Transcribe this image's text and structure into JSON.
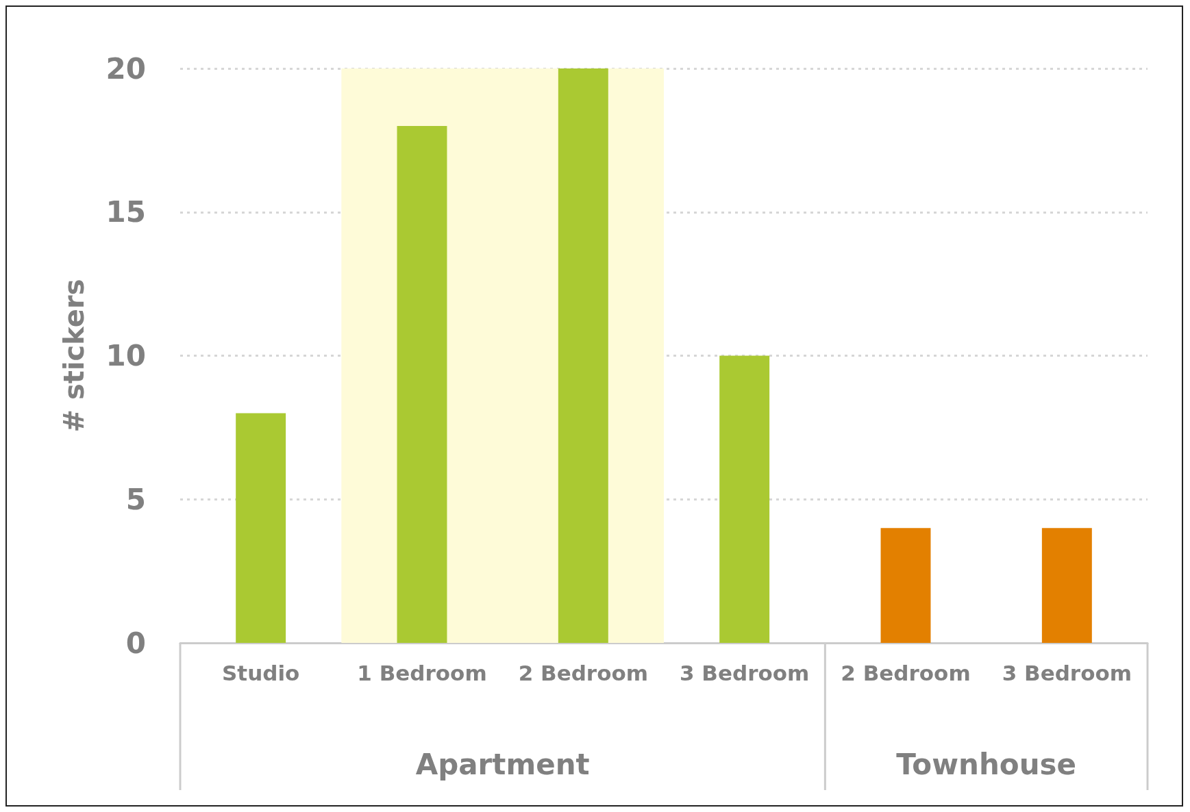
{
  "chart_data": {
    "type": "bar",
    "ylabel": "# stickers",
    "categories": [
      "Studio",
      "1 Bedroom",
      "2 Bedroom",
      "3 Bedroom",
      "2 Bedroom",
      "3 Bedroom"
    ],
    "values": [
      8,
      18,
      20,
      10,
      4,
      4
    ],
    "colors": [
      "#aac932",
      "#aac932",
      "#aac932",
      "#aac932",
      "#e38000",
      "#e38000"
    ],
    "ylim": [
      0,
      20
    ],
    "yticks": [
      0,
      5,
      10,
      15,
      20
    ],
    "grid": "y",
    "bands": [
      {
        "axis": "x",
        "from": "1 Bedroom",
        "to": "2 Bedroom",
        "color": "#fefbd8"
      }
    ],
    "annotations": [
      "Apartment",
      "Townhouse"
    ]
  }
}
